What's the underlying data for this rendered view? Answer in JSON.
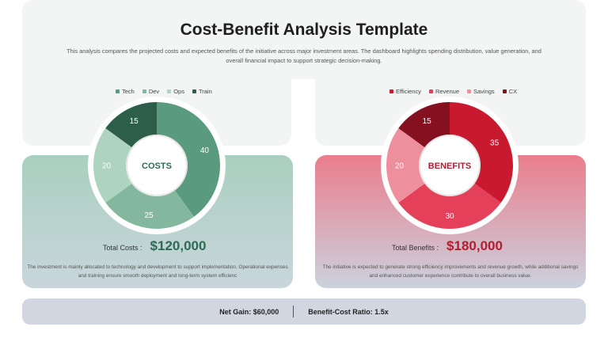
{
  "title": "Cost-Benefit Analysis Template",
  "description": "This analysis compares the projected costs and expected benefits of the initiative across major investment areas. The dashboard highlights spending distribution, value generation, and overall financial impact to support strategic decision-making.",
  "colors": {
    "costs_accent": "#2e6b55",
    "benefits_accent": "#b01e31"
  },
  "costs": {
    "center_label": "COSTS",
    "total_label": "Total Costs :",
    "total_value": "$120,000",
    "description": "The investment is mainly allocated to technology and development to support implementation. Operational expenses and training ensure smooth deployment and long-term system efficienc"
  },
  "benefits": {
    "center_label": "BENEFITS",
    "total_label": "Total Benefits :",
    "total_value": "$180,000",
    "description": "The initiative is expected to generate strong efficiency improvements and revenue growth, while additional savings and enhanced customer experience contribute to overall business value."
  },
  "summary": {
    "net_gain": "Net Gain: $60,000",
    "ratio": "Benefit-Cost Ratio: 1.5x"
  },
  "chart_data": [
    {
      "type": "pie",
      "donut": true,
      "categories": [
        "Tech",
        "Dev",
        "Ops",
        "Train"
      ],
      "values": [
        40,
        25,
        20,
        15
      ],
      "colors": [
        "#5a9a7e",
        "#84b89e",
        "#aed4bf",
        "#2d5e4a"
      ],
      "legend": "top",
      "center_label": "COSTS"
    },
    {
      "type": "pie",
      "donut": true,
      "categories": [
        "Efficiency",
        "Revenue",
        "Savings",
        "CX"
      ],
      "values": [
        35,
        30,
        20,
        15
      ],
      "colors": [
        "#c8192f",
        "#e4405a",
        "#ee8f9d",
        "#85101f"
      ],
      "legend": "top",
      "center_label": "BENEFITS"
    }
  ]
}
